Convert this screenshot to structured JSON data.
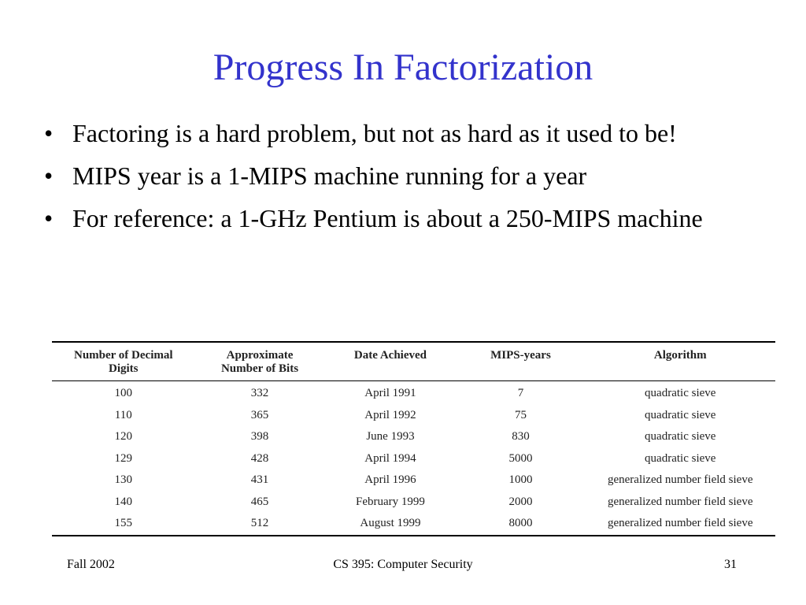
{
  "slide": {
    "title": "Progress In Factorization",
    "bullets": [
      "Factoring is a hard problem, but not as hard as it used to be!",
      "MIPS year is a 1-MIPS machine running for a year",
      "For reference: a 1-GHz Pentium is about a 250-MIPS machine"
    ],
    "bullet_glyph": "•",
    "title_color": "#3333cc"
  },
  "table": {
    "headers": [
      [
        "Number of Decimal",
        "Digits"
      ],
      [
        "Approximate",
        "Number of Bits"
      ],
      [
        "Date Achieved"
      ],
      [
        "MIPS-years"
      ],
      [
        "Algorithm"
      ]
    ],
    "rows": [
      [
        "100",
        "332",
        "April 1991",
        "7",
        "quadratic sieve"
      ],
      [
        "110",
        "365",
        "April 1992",
        "75",
        "quadratic sieve"
      ],
      [
        "120",
        "398",
        "June 1993",
        "830",
        "quadratic sieve"
      ],
      [
        "129",
        "428",
        "April 1994",
        "5000",
        "quadratic sieve"
      ],
      [
        "130",
        "431",
        "April 1996",
        "1000",
        "generalized number field sieve"
      ],
      [
        "140",
        "465",
        "February 1999",
        "2000",
        "generalized number field sieve"
      ],
      [
        "155",
        "512",
        "August 1999",
        "8000",
        "generalized number field sieve"
      ]
    ]
  },
  "footer": {
    "left": "Fall 2002",
    "center": "CS 395: Computer Security",
    "right": "31"
  }
}
